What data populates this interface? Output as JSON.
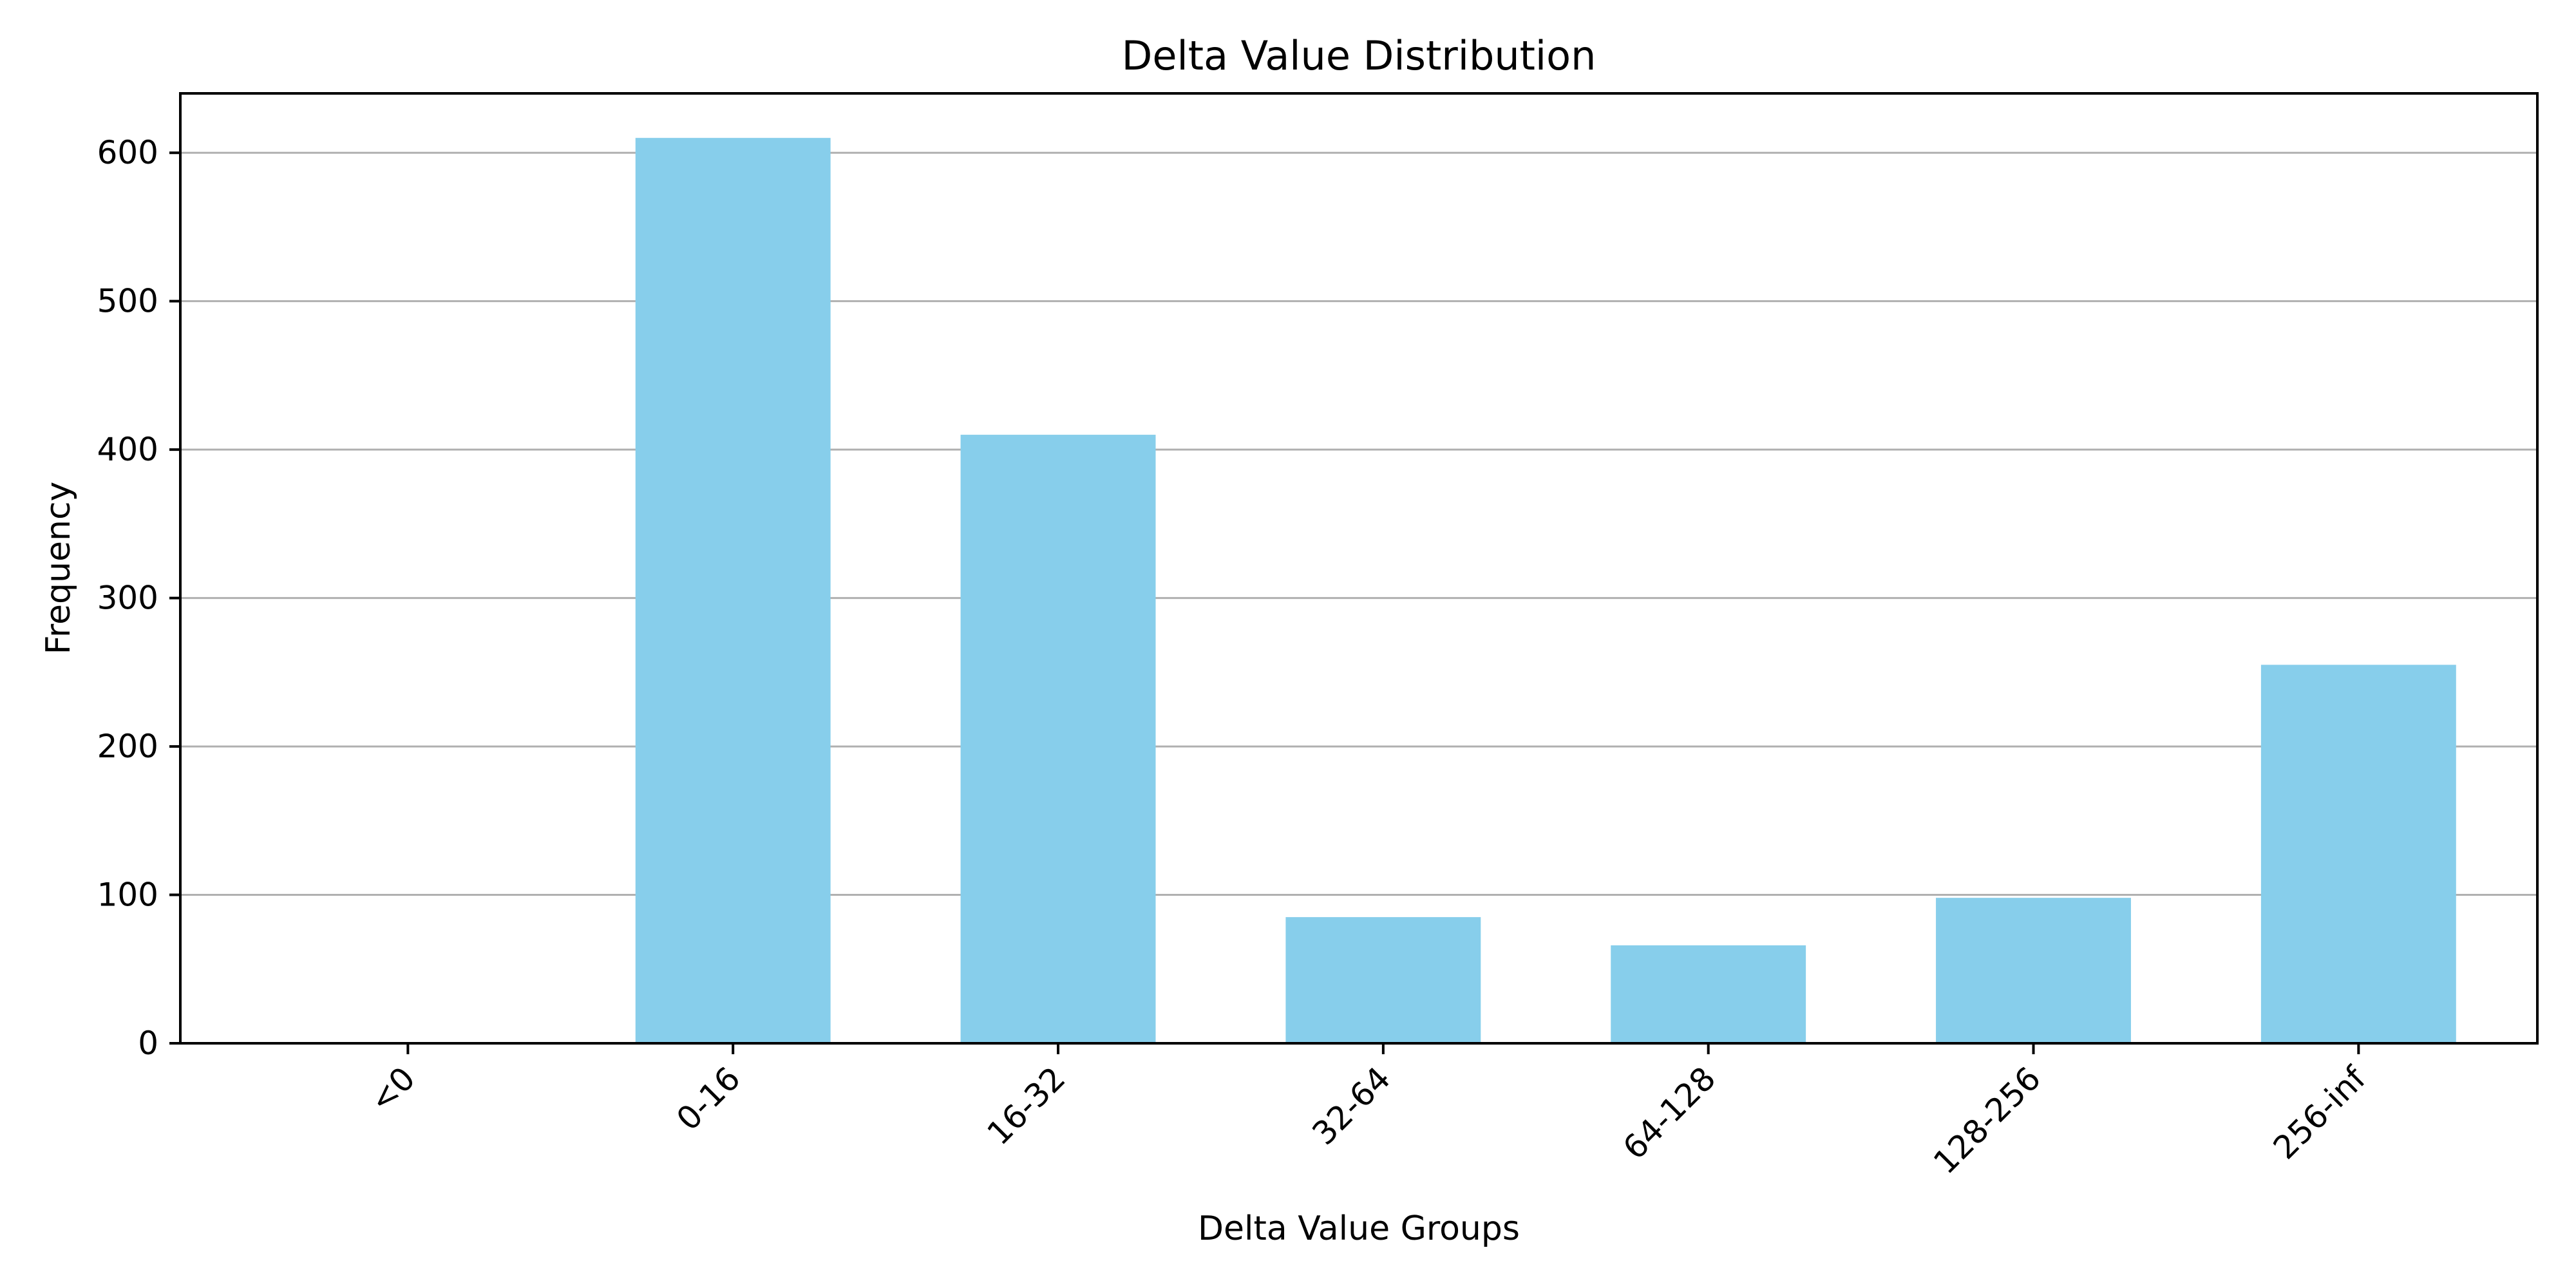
{
  "chart_data": {
    "type": "bar",
    "title": "Delta Value Distribution",
    "xlabel": "Delta Value Groups",
    "ylabel": "Frequency",
    "categories": [
      "<0",
      "0-16",
      "16-32",
      "32-64",
      "64-128",
      "128-256",
      "256-inf"
    ],
    "values": [
      0,
      610,
      410,
      85,
      66,
      98,
      255
    ],
    "ylim": [
      0,
      640
    ],
    "yticks": [
      0,
      100,
      200,
      300,
      400,
      500,
      600
    ],
    "grid": "y-axis",
    "bar_color": "#87CEEB",
    "grid_color": "#b0b0b0"
  }
}
